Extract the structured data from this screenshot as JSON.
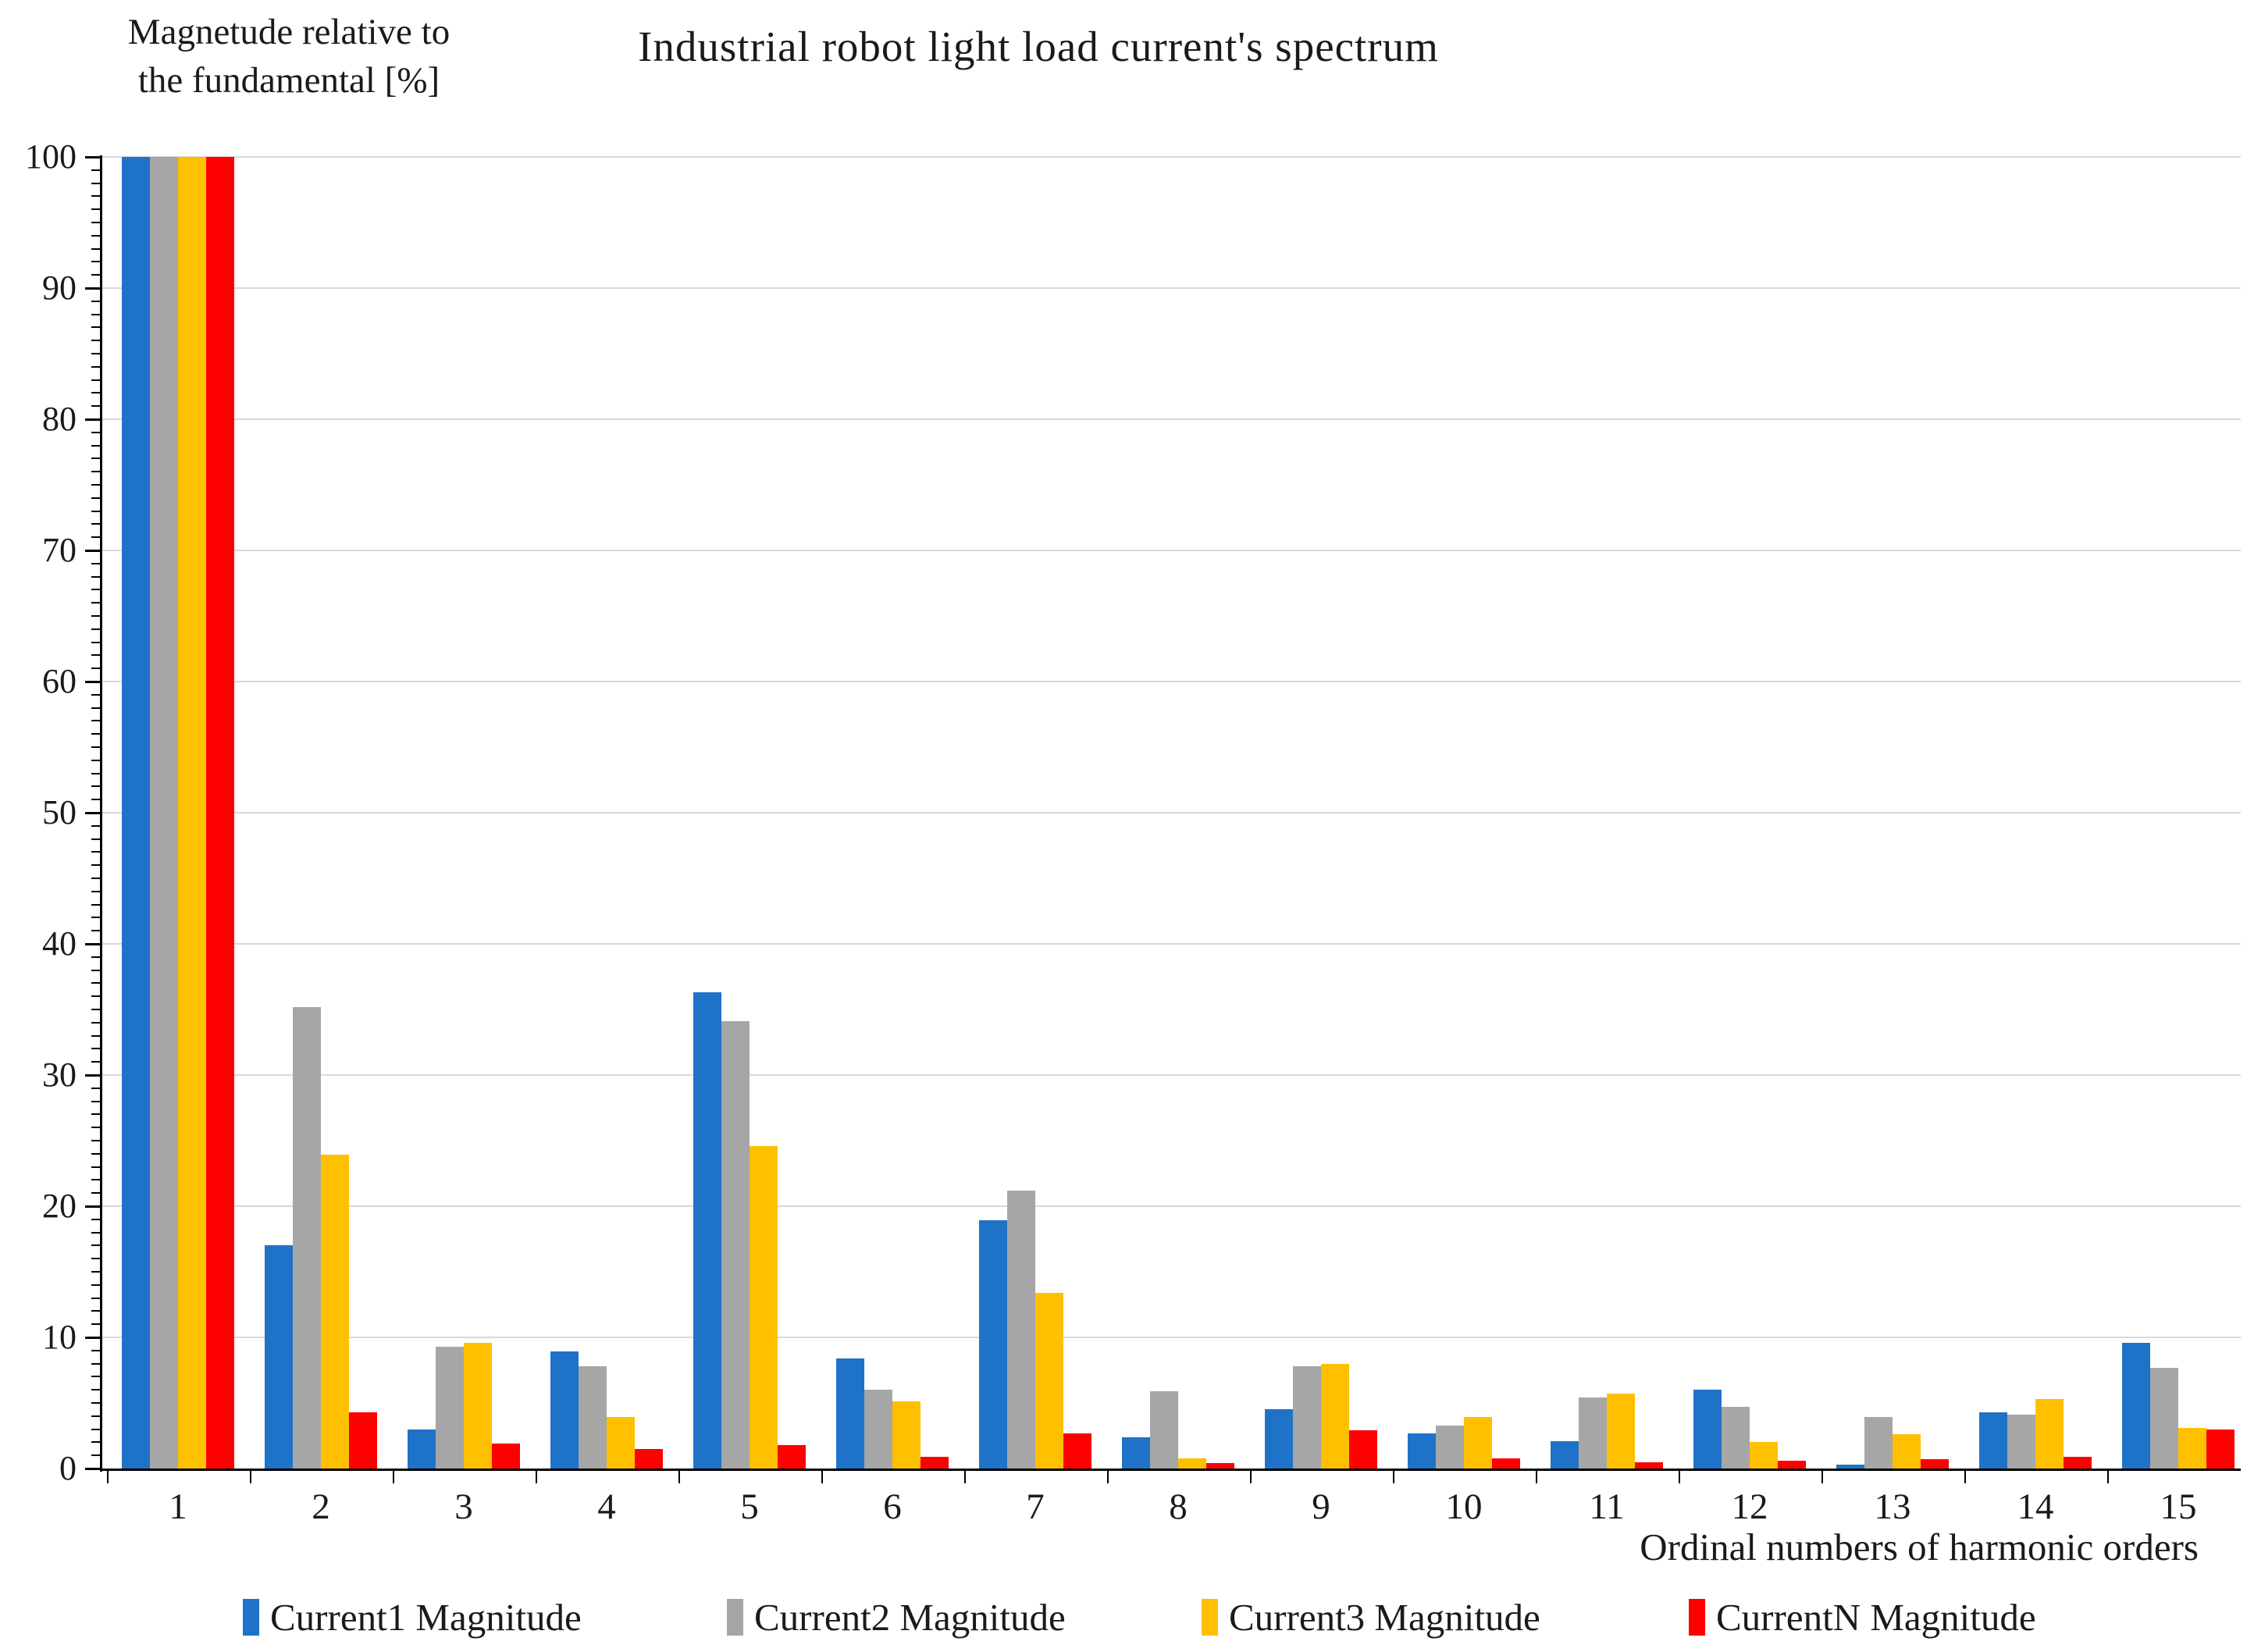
{
  "title": "Industrial robot light load current's spectrum",
  "y_axis_title_line1": "Magnetude relative to",
  "y_axis_title_line2": "the fundamental [%]",
  "x_axis_title": "Ordinal numbers of harmonic orders",
  "colors": {
    "axis": "#000000",
    "grid": "#d9d9d9",
    "text": "#1a1a1a"
  },
  "chart_data": {
    "type": "bar",
    "title": "Industrial robot light load current's spectrum",
    "xlabel": "Ordinal numbers of harmonic orders",
    "ylabel": "Magnetude relative to the fundamental [%]",
    "categories": [
      "1",
      "2",
      "3",
      "4",
      "5",
      "6",
      "7",
      "8",
      "9",
      "10",
      "11",
      "12",
      "13",
      "14",
      "15"
    ],
    "y_tick_labels": [
      "0",
      "10",
      "20",
      "30",
      "40",
      "50",
      "60",
      "70",
      "80",
      "90",
      "100"
    ],
    "ylim": [
      0,
      100
    ],
    "y_major_step": 10,
    "y_minor_step": 1,
    "grid": true,
    "legend_position": "bottom",
    "series": [
      {
        "name": "Current1 Magnitude",
        "color": "#1e73c8",
        "values": [
          100,
          17.0,
          3.0,
          8.9,
          36.3,
          8.4,
          18.9,
          2.4,
          4.5,
          2.7,
          2.1,
          6.0,
          0.3,
          4.3,
          9.6
        ]
      },
      {
        "name": "Current2 Magnitude",
        "color": "#a6a6a6",
        "values": [
          100,
          35.2,
          9.3,
          7.8,
          34.1,
          6.0,
          21.2,
          5.9,
          7.8,
          3.3,
          5.4,
          4.7,
          3.9,
          4.1,
          7.7
        ]
      },
      {
        "name": "Current3 Magnitude",
        "color": "#ffc000",
        "values": [
          100,
          23.9,
          9.6,
          3.9,
          24.6,
          5.1,
          13.4,
          0.8,
          8.0,
          3.9,
          5.7,
          2.0,
          2.6,
          5.3,
          3.1
        ]
      },
      {
        "name": "CurrentN Magnitude",
        "color": "#ff0000",
        "values": [
          100,
          4.3,
          1.9,
          1.5,
          1.8,
          0.9,
          2.7,
          0.4,
          2.9,
          0.8,
          0.5,
          0.6,
          0.7,
          0.9,
          3.0
        ]
      }
    ]
  }
}
